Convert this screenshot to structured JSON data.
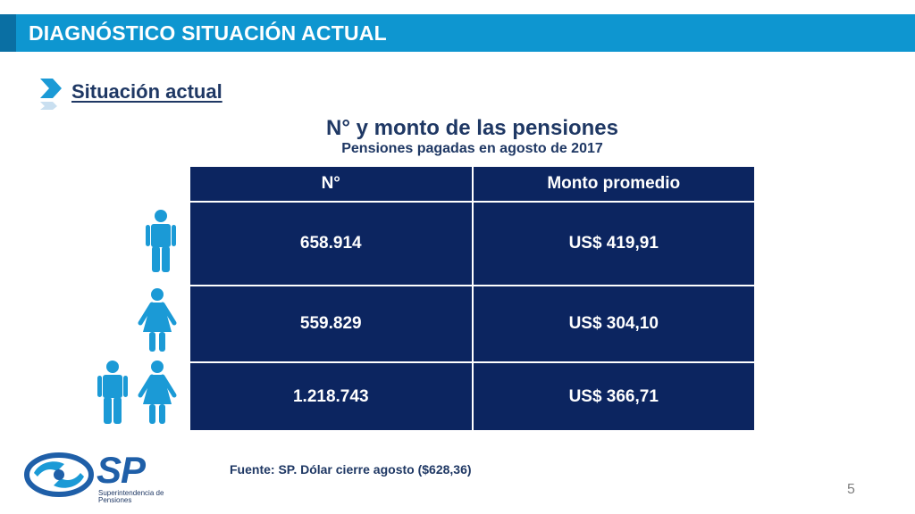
{
  "header": {
    "title": "DIAGNÓSTICO SITUACIÓN ACTUAL"
  },
  "section": {
    "title": "Situación actual"
  },
  "table": {
    "title": "N° y monto de las pensiones",
    "subtitle": "Pensiones pagadas en agosto de 2017",
    "columns": [
      "N°",
      "Monto promedio"
    ],
    "rows": [
      {
        "group_icon": "male-figure-icon",
        "count": "658.914",
        "amount": "US$ 419,91"
      },
      {
        "group_icon": "female-figure-icon",
        "count": "559.829",
        "amount": "US$ 304,10"
      },
      {
        "group_icon": "male-and-female-figures-icon",
        "count": "1.218.743",
        "amount": "US$ 366,71"
      }
    ]
  },
  "footer": {
    "note": "Fuente: SP. Dólar cierre agosto ($628,36)"
  },
  "page_number": "5",
  "logo": {
    "letters": "SP",
    "line1": "Superintendencia de",
    "line2": "Pensiones"
  },
  "colors": {
    "header_bar": "#0e96d0",
    "table_fill": "#0c2560",
    "text_dark": "#1f3864",
    "icon_blue": "#1b9ad6"
  }
}
